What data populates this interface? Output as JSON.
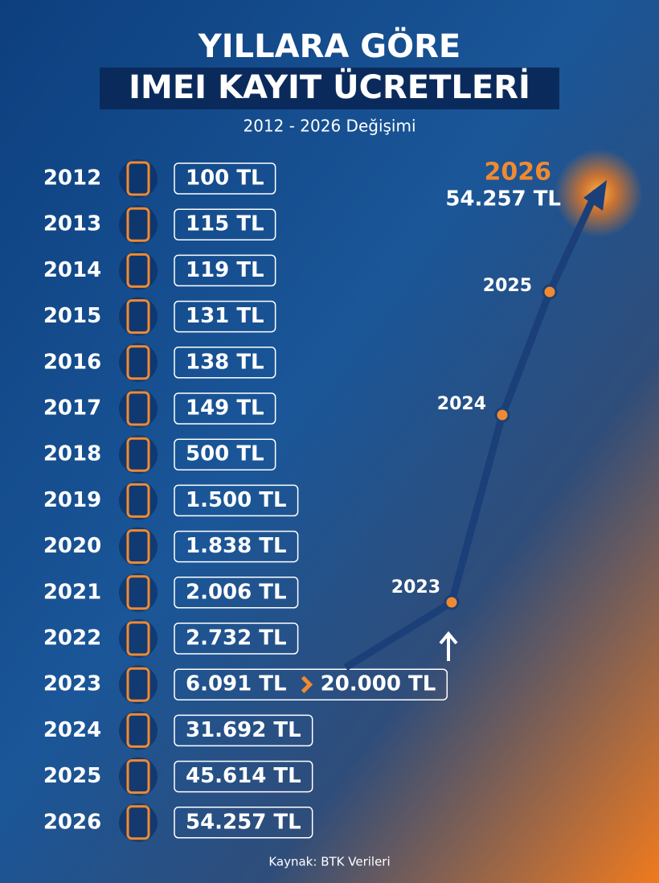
{
  "header": {
    "title_line1": "YILLARA GÖRE",
    "title_line2": "IMEI KAYIT ÜCRETLERİ",
    "subtitle": "2012 - 2026 Değişimi"
  },
  "rows": [
    {
      "year": "2012",
      "fee": "100 TL"
    },
    {
      "year": "2013",
      "fee": "115 TL"
    },
    {
      "year": "2014",
      "fee": "119 TL"
    },
    {
      "year": "2015",
      "fee": "131 TL"
    },
    {
      "year": "2016",
      "fee": "138 TL"
    },
    {
      "year": "2017",
      "fee": "149 TL"
    },
    {
      "year": "2018",
      "fee": "500 TL"
    },
    {
      "year": "2019",
      "fee": "1.500 TL"
    },
    {
      "year": "2020",
      "fee": "1.838 TL"
    },
    {
      "year": "2021",
      "fee": "2.006 TL"
    },
    {
      "year": "2022",
      "fee": "2.732 TL"
    },
    {
      "year": "2023",
      "fee": "6.091 TL",
      "new_fee": "20.000 TL"
    },
    {
      "year": "2024",
      "fee": "31.692 TL"
    },
    {
      "year": "2025",
      "fee": "45.614 TL"
    },
    {
      "year": "2026",
      "fee": "54.257 TL"
    }
  ],
  "trend": {
    "points": [
      {
        "label": "2023"
      },
      {
        "label": "2024"
      },
      {
        "label": "2025"
      }
    ],
    "highlight": {
      "year": "2026",
      "fee": "54.257 TL"
    }
  },
  "source": "Kaynak: BTK Verileri"
}
